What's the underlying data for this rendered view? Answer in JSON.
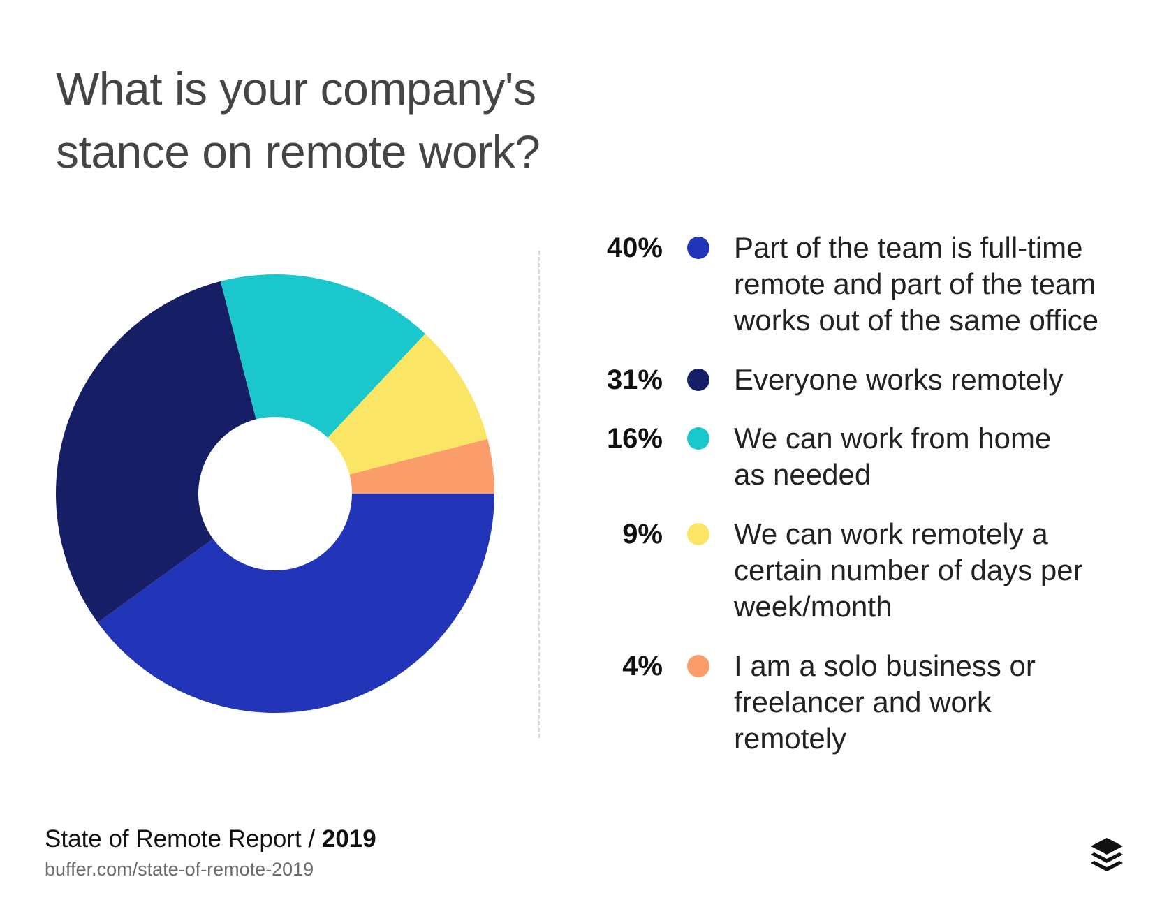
{
  "title_lines": [
    "What is your company's",
    "stance on remote work?"
  ],
  "chart_data": {
    "type": "pie",
    "donut": true,
    "title": "What is your company's stance on remote work?",
    "legend_position": "right",
    "series": [
      {
        "label": "Part of the team is full-time remote and part of the team works out of the same office",
        "value": 40,
        "value_label": "40%",
        "color": "#2235b8",
        "lines": [
          "Part of the team is full-time",
          "remote and part of the team",
          "works out of the same office"
        ]
      },
      {
        "label": "Everyone works remotely",
        "value": 31,
        "value_label": "31%",
        "color": "#161f66",
        "lines": [
          "Everyone works remotely"
        ]
      },
      {
        "label": "We can work from home as needed",
        "value": 16,
        "value_label": "16%",
        "color": "#19c7cc",
        "lines": [
          "We can work from home",
          "as needed"
        ]
      },
      {
        "label": "We can work remotely a certain number of days per week/month",
        "value": 9,
        "value_label": "9%",
        "color": "#fbe565",
        "lines": [
          "We can work remotely a",
          "certain number of days per",
          "week/month"
        ]
      },
      {
        "label": "I am a solo business or freelancer and work remotely",
        "value": 4,
        "value_label": "4%",
        "color": "#fb9d6a",
        "lines": [
          "I am a solo business or",
          "freelancer and work",
          "remotely"
        ]
      }
    ]
  },
  "footer": {
    "report": "State of Remote Report / ",
    "year": "2019",
    "url": "buffer.com/state-of-remote-2019"
  },
  "logo": {
    "icon": "buffer-stack-icon"
  }
}
